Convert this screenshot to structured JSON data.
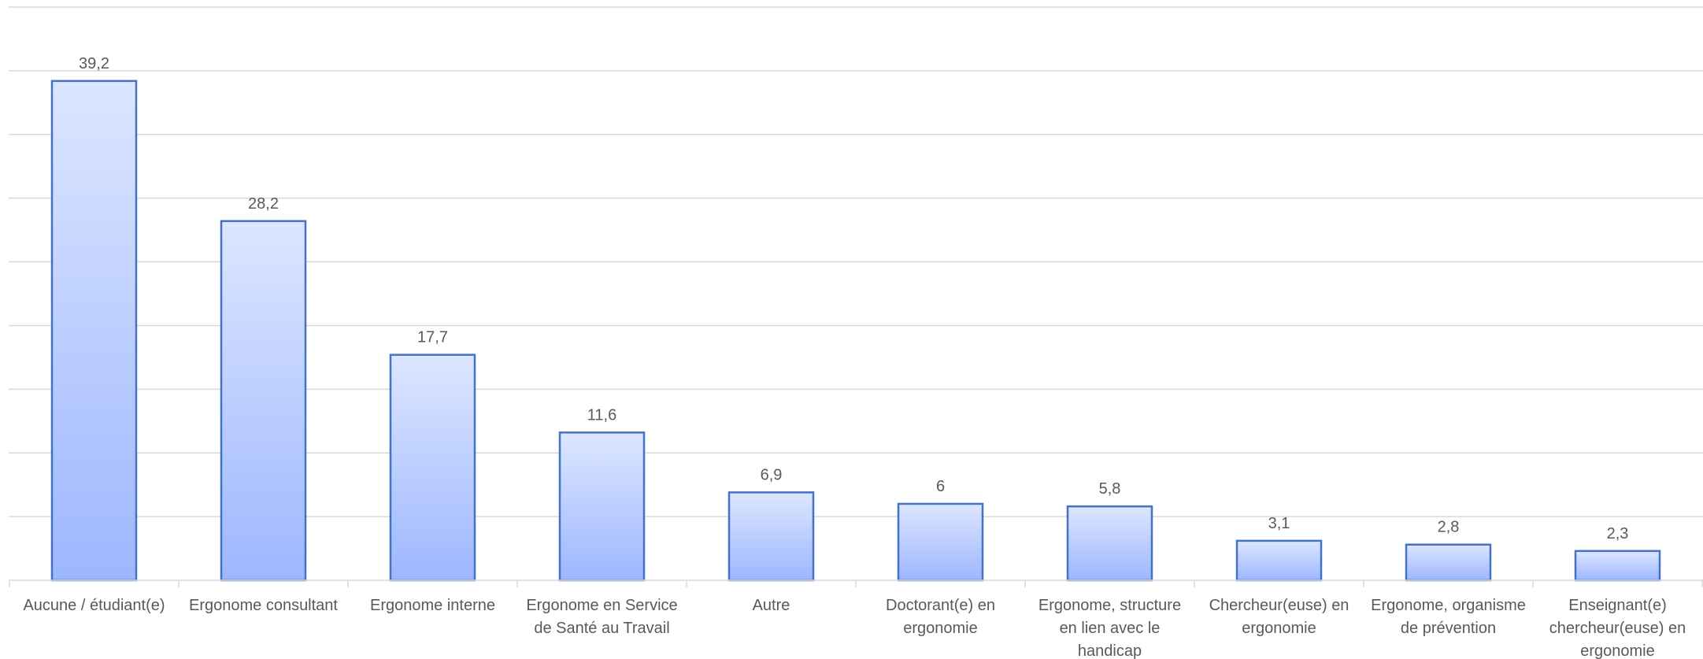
{
  "chart_data": {
    "type": "bar",
    "categories": [
      [
        "Aucune / étudiant(e)"
      ],
      [
        "Ergonome consultant"
      ],
      [
        "Ergonome interne"
      ],
      [
        "Ergonome en Service",
        "de Santé au Travail"
      ],
      [
        "Autre"
      ],
      [
        "Doctorant(e) en",
        "ergonomie"
      ],
      [
        "Ergonome, structure",
        "en lien avec le",
        "handicap"
      ],
      [
        "Chercheur(euse) en",
        "ergonomie"
      ],
      [
        "Ergonome, organisme",
        "de prévention"
      ],
      [
        "Enseignant(e)",
        "chercheur(euse) en",
        "ergonomie"
      ]
    ],
    "values": [
      39.2,
      28.2,
      17.7,
      11.6,
      6.9,
      6,
      5.8,
      3.1,
      2.8,
      2.3
    ],
    "value_labels": [
      "39,2",
      "28,2",
      "17,7",
      "11,6",
      "6,9",
      "6",
      "5,8",
      "3,1",
      "2,8",
      "2,3"
    ],
    "ylim": [
      0,
      45
    ],
    "grid_step": 5,
    "grid": true,
    "colors": {
      "bar_top": "#dce6ff",
      "bar_bottom": "#9db7ff",
      "bar_border": "#4472c4",
      "grid": "#d9d9d9",
      "text": "#595959"
    }
  }
}
